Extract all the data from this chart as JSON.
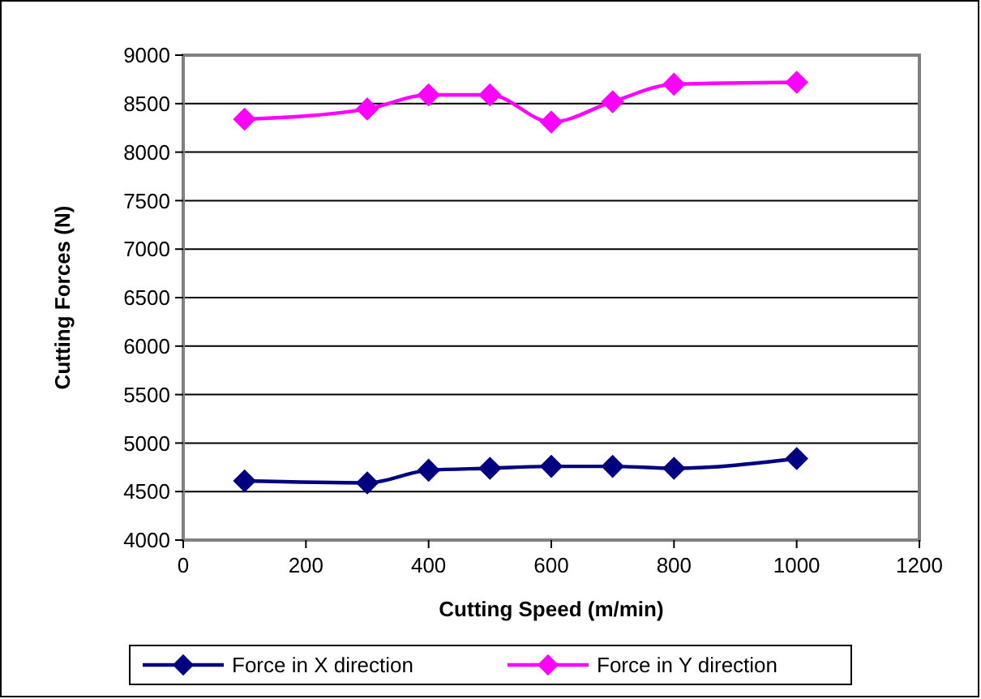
{
  "chart_data": {
    "type": "line",
    "xlabel": "Cutting Speed (m/min)",
    "ylabel": "Cutting Forces (N)",
    "series": [
      {
        "name": "Force in X direction",
        "color": "#000080",
        "x": [
          100,
          300,
          400,
          500,
          600,
          700,
          800,
          1000
        ],
        "values": [
          4610,
          4590,
          4720,
          4740,
          4760,
          4760,
          4740,
          4840
        ]
      },
      {
        "name": "Force in Y direction",
        "color": "#ff00ff",
        "x": [
          100,
          300,
          400,
          500,
          600,
          700,
          800,
          1000
        ],
        "values": [
          8340,
          8445,
          8590,
          8590,
          8310,
          8520,
          8700,
          8720
        ]
      }
    ],
    "xlim": [
      0,
      1200
    ],
    "xticks": [
      0,
      200,
      400,
      600,
      800,
      1000,
      1200
    ],
    "ylim": [
      4000,
      9000
    ],
    "yticks": [
      4000,
      4500,
      5000,
      5500,
      6000,
      6500,
      7000,
      7500,
      8000,
      8500,
      9000
    ],
    "grid": "y",
    "legend": "bottom",
    "marker": "diamond",
    "line_style": "solid"
  }
}
